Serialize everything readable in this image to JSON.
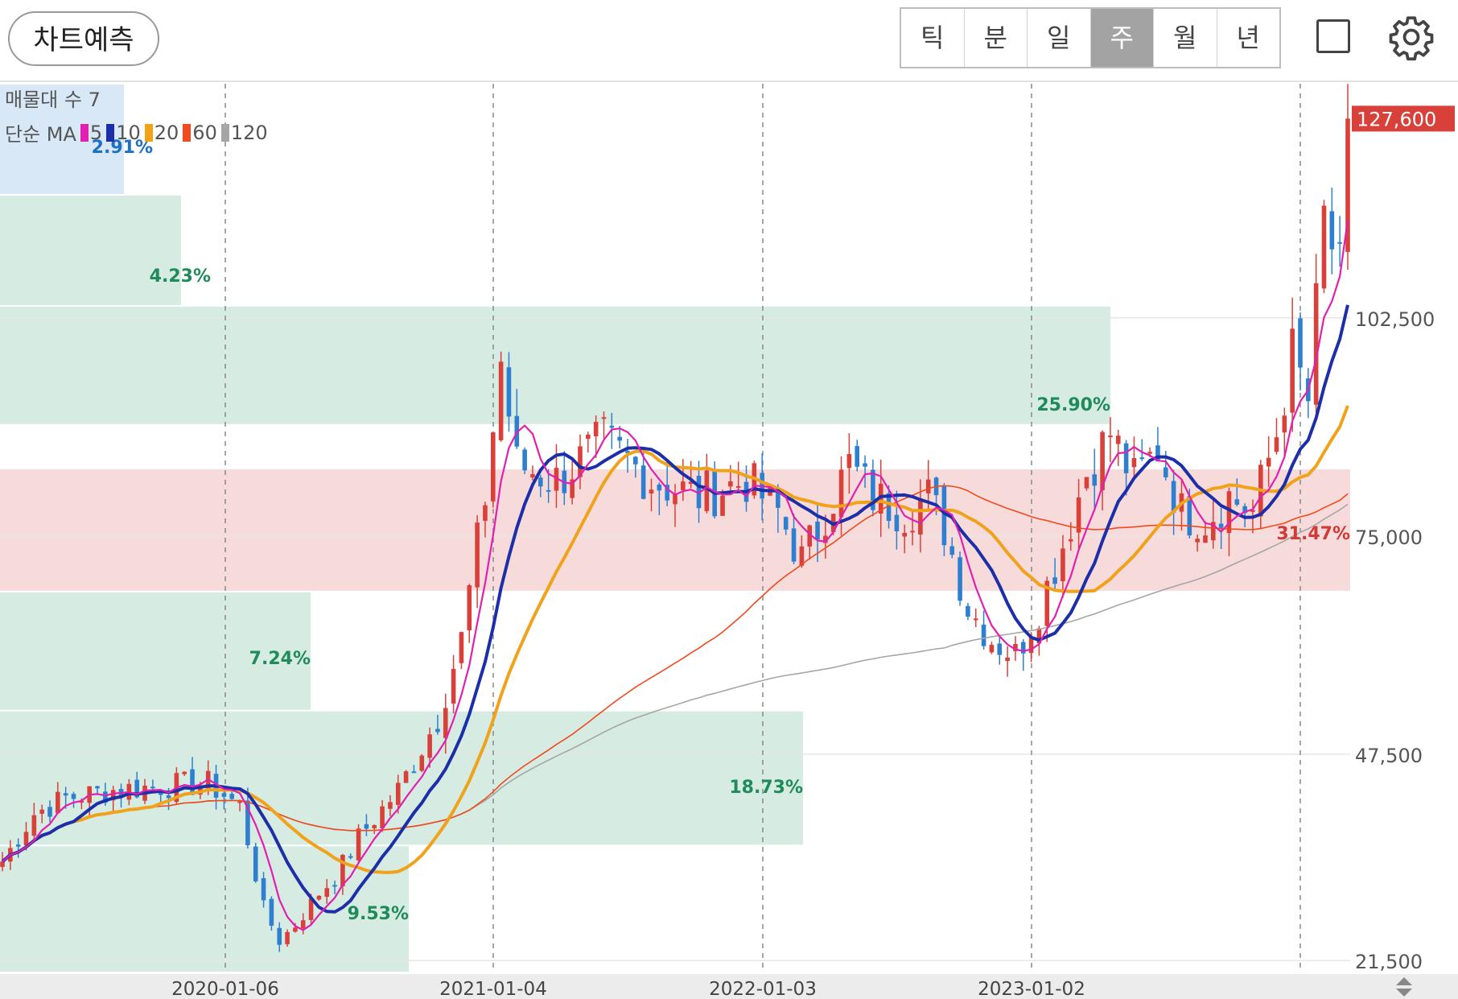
{
  "toolbar": {
    "predict_label": "차트예측",
    "periods": [
      "틱",
      "분",
      "일",
      "주",
      "월",
      "년"
    ],
    "active_period": "주",
    "icons": [
      "square-icon",
      "gear-icon"
    ]
  },
  "legend": {
    "volume_label": "매물대 수 7",
    "ma_label": "단순 MA",
    "ma_periods": [
      "5",
      "10",
      "20",
      "60",
      "120"
    ]
  },
  "chart_data": {
    "type": "candlestick",
    "timeframe": "weekly",
    "ylim": [
      20000,
      132000
    ],
    "y_ticks": [
      21500,
      47500,
      75000,
      102500
    ],
    "y_tick_labels": [
      "21,500",
      "47,500",
      "75,000",
      "102,500"
    ],
    "x_tick_labels": [
      "2020-01-06",
      "2021-01-04",
      "2022-01-03",
      "2023-01-02"
    ],
    "current_price": 127600,
    "current_price_label": "127,600",
    "colors": {
      "up": "#d9403a",
      "down": "#2f7fd1",
      "ma5": "#e020b0",
      "ma10": "#1c2fa8",
      "ma20": "#f0a21a",
      "ma60": "#f04a1e",
      "ma120": "#a6a6a6",
      "volume_profile": "#d6ebe2",
      "volume_profile_top": "#d8e8f7",
      "volume_profile_max": "#f7dbdb"
    },
    "volume_profile": [
      {
        "low": 118000,
        "high": 132000,
        "percent": "2.91%"
      },
      {
        "low": 104000,
        "high": 118000,
        "percent": "4.23%"
      },
      {
        "low": 89000,
        "high": 104000,
        "percent": "25.90%"
      },
      {
        "low": 68000,
        "high": 83500,
        "percent": "31.47%",
        "max": true
      },
      {
        "low": 53000,
        "high": 68000,
        "percent": "7.24%"
      },
      {
        "low": 36000,
        "high": 53000,
        "percent": "18.73%"
      },
      {
        "low": 20000,
        "high": 36000,
        "percent": "9.53%"
      }
    ],
    "price_path": [
      [
        0,
        34000
      ],
      [
        4,
        40000
      ],
      [
        8,
        42000
      ],
      [
        14,
        43000
      ],
      [
        20,
        43500
      ],
      [
        26,
        43800
      ],
      [
        30,
        41000
      ],
      [
        33,
        28000
      ],
      [
        35,
        24000
      ],
      [
        37,
        26000
      ],
      [
        40,
        30000
      ],
      [
        42,
        32000
      ],
      [
        45,
        37000
      ],
      [
        50,
        43000
      ],
      [
        55,
        52000
      ],
      [
        58,
        62000
      ],
      [
        61,
        80000
      ],
      [
        63,
        97000
      ],
      [
        65,
        84000
      ],
      [
        70,
        82000
      ],
      [
        76,
        87000
      ],
      [
        82,
        82000
      ],
      [
        88,
        80000
      ],
      [
        94,
        82000
      ],
      [
        98,
        78000
      ],
      [
        101,
        72000
      ],
      [
        104,
        78000
      ],
      [
        107,
        84000
      ],
      [
        110,
        80000
      ],
      [
        114,
        78000
      ],
      [
        117,
        80000
      ],
      [
        119,
        76000
      ],
      [
        122,
        66000
      ],
      [
        125,
        62000
      ],
      [
        128,
        60000
      ],
      [
        131,
        66000
      ],
      [
        134,
        74000
      ],
      [
        137,
        83000
      ],
      [
        140,
        88000
      ],
      [
        143,
        82000
      ],
      [
        146,
        86000
      ],
      [
        149,
        78000
      ],
      [
        152,
        77000
      ],
      [
        155,
        80000
      ],
      [
        158,
        78000
      ],
      [
        161,
        88000
      ],
      [
        163,
        98000
      ],
      [
        165,
        92000
      ],
      [
        167,
        115000
      ],
      [
        169,
        108000
      ],
      [
        170,
        127600
      ]
    ]
  }
}
